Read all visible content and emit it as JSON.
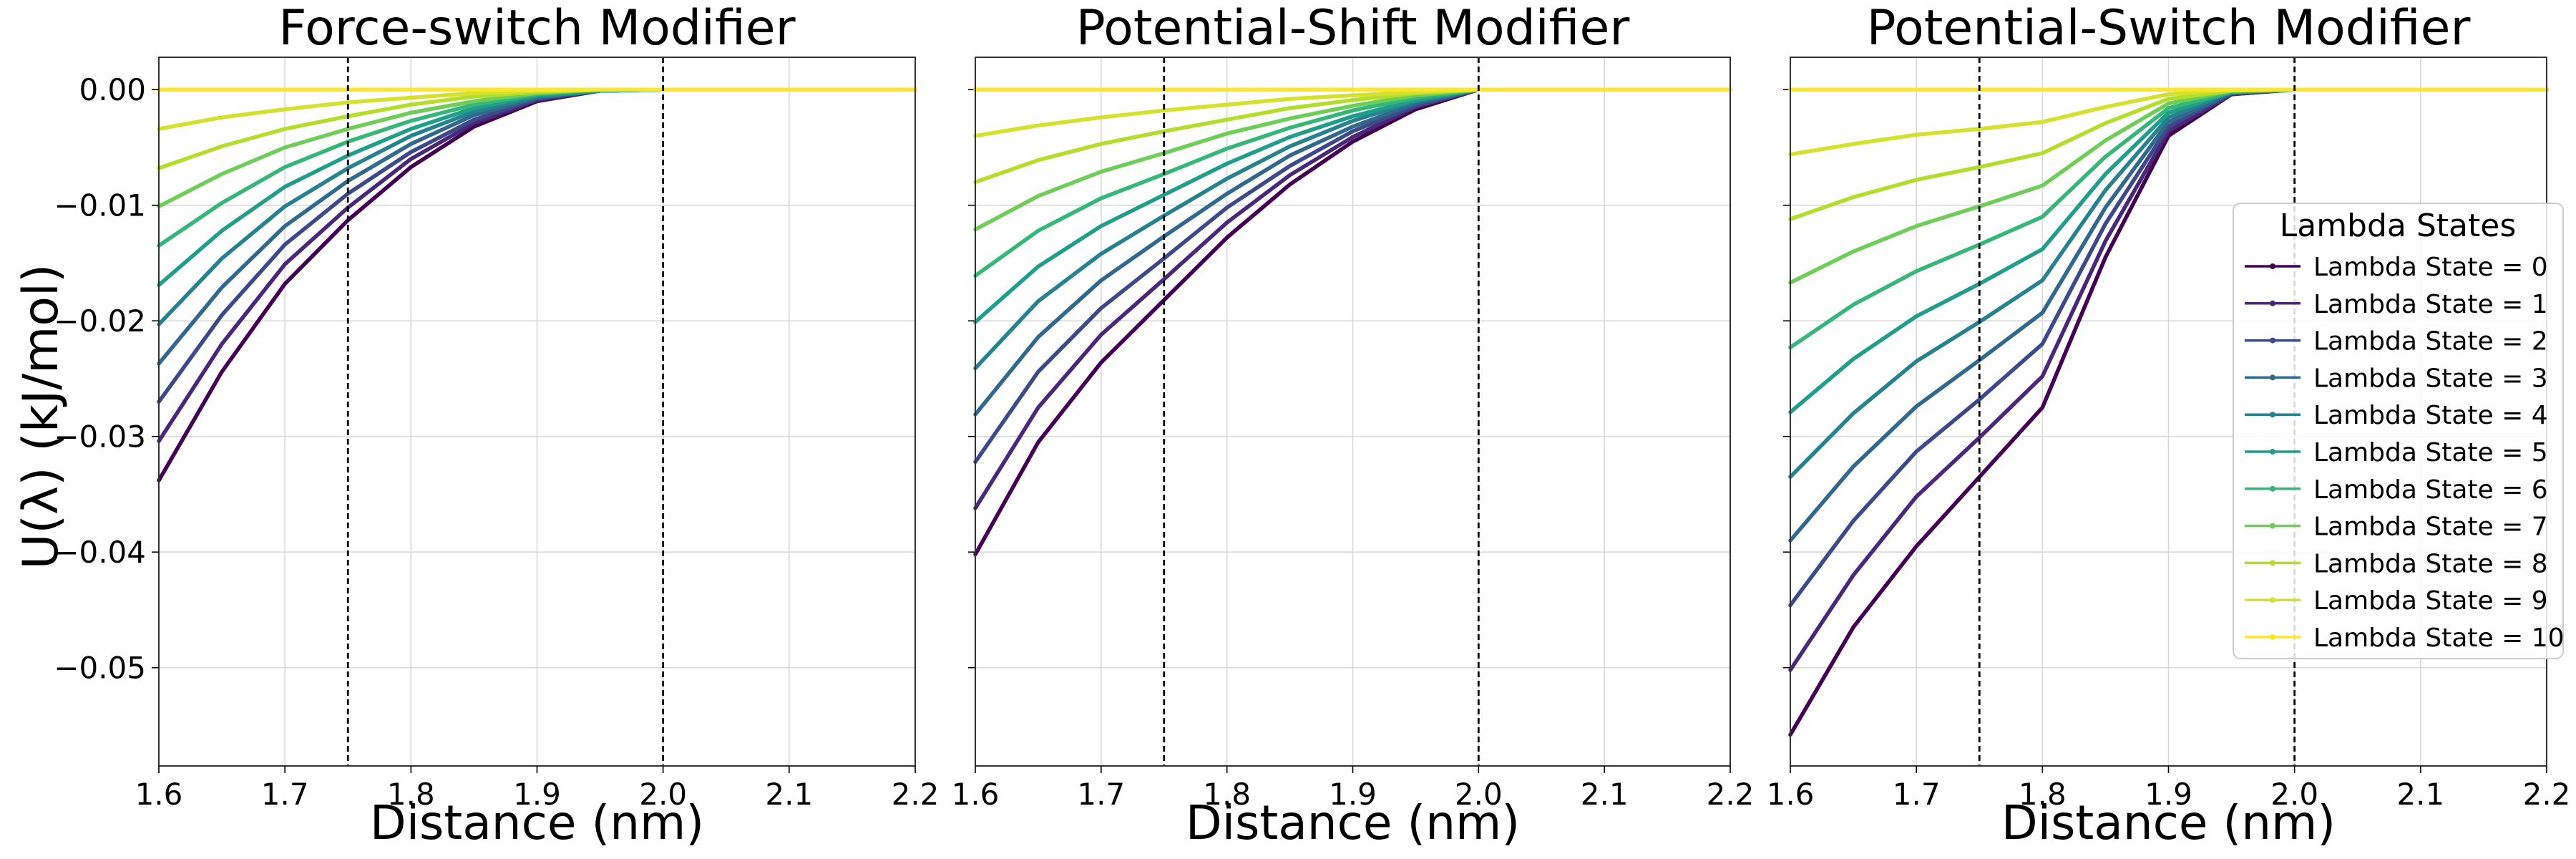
{
  "figure": {
    "ylabel": "U(λ) (kJ/mol)",
    "legend_title": "Lambda States",
    "colors": [
      "#440154",
      "#482878",
      "#3e4989",
      "#31688e",
      "#26828e",
      "#1f9e89",
      "#35b779",
      "#6ece58",
      "#b5de2b",
      "#d4e22c",
      "#fde725"
    ]
  },
  "chart_data": [
    {
      "type": "line",
      "title": "Force-switch Modifier",
      "xlabel": "Distance (nm)",
      "ylabel": "U(λ) (kJ/mol)",
      "xlim": [
        1.6,
        2.2
      ],
      "ylim": [
        -0.0585,
        0.0028
      ],
      "xticks": [
        "1.6",
        "1.7",
        "1.8",
        "1.9",
        "2.0",
        "2.1",
        "2.2"
      ],
      "yticks": [
        "0.00",
        "−0.01",
        "−0.02",
        "−0.03",
        "−0.04",
        "−0.05"
      ],
      "vlines": [
        1.75,
        2.0
      ],
      "grid": true,
      "x": [
        1.6,
        1.65,
        1.7,
        1.75,
        1.8,
        1.85,
        1.9,
        1.95,
        2.0,
        2.2
      ],
      "series": [
        {
          "name": "Lambda State = 0",
          "values": [
            -0.0338,
            -0.0244,
            -0.0168,
            -0.0113,
            -0.0067,
            -0.0032,
            -0.001,
            -0.0001,
            0.0,
            0.0
          ]
        },
        {
          "name": "Lambda State = 1",
          "values": [
            -0.0304,
            -0.022,
            -0.0151,
            -0.0102,
            -0.006,
            -0.0029,
            -0.0009,
            -0.0001,
            0.0,
            0.0
          ]
        },
        {
          "name": "Lambda State = 2",
          "values": [
            -0.027,
            -0.0195,
            -0.0134,
            -0.009,
            -0.0054,
            -0.0026,
            -0.0008,
            -0.0001,
            0.0,
            0.0
          ]
        },
        {
          "name": "Lambda State = 3",
          "values": [
            -0.0237,
            -0.0171,
            -0.0118,
            -0.0079,
            -0.0047,
            -0.0022,
            -0.0007,
            -0.0001,
            0.0,
            0.0
          ]
        },
        {
          "name": "Lambda State = 4",
          "values": [
            -0.0203,
            -0.0146,
            -0.0101,
            -0.0068,
            -0.004,
            -0.0019,
            -0.0006,
            -0.0001,
            0.0,
            0.0
          ]
        },
        {
          "name": "Lambda State = 5",
          "values": [
            -0.0169,
            -0.0122,
            -0.0084,
            -0.0057,
            -0.0034,
            -0.0016,
            -0.0005,
            -0.0001,
            0.0,
            0.0
          ]
        },
        {
          "name": "Lambda State = 6",
          "values": [
            -0.0135,
            -0.0098,
            -0.0067,
            -0.0045,
            -0.0027,
            -0.0013,
            -0.0004,
            0.0,
            0.0,
            0.0
          ]
        },
        {
          "name": "Lambda State = 7",
          "values": [
            -0.0101,
            -0.0073,
            -0.005,
            -0.0034,
            -0.002,
            -0.001,
            -0.0003,
            0.0,
            0.0,
            0.0
          ]
        },
        {
          "name": "Lambda State = 8",
          "values": [
            -0.0068,
            -0.0049,
            -0.0034,
            -0.0023,
            -0.0013,
            -0.0006,
            -0.0002,
            0.0,
            0.0,
            0.0
          ]
        },
        {
          "name": "Lambda State = 9",
          "values": [
            -0.0034,
            -0.0024,
            -0.0017,
            -0.0011,
            -0.0007,
            -0.0003,
            -0.0001,
            0.0,
            0.0,
            0.0
          ]
        },
        {
          "name": "Lambda State = 10",
          "values": [
            0.0,
            0.0,
            0.0,
            0.0,
            0.0,
            0.0,
            0.0,
            0.0,
            0.0,
            0.0
          ]
        }
      ]
    },
    {
      "type": "line",
      "title": "Potential-Shift Modifier",
      "xlabel": "Distance (nm)",
      "xlim": [
        1.6,
        2.2
      ],
      "ylim": [
        -0.0585,
        0.0028
      ],
      "xticks": [
        "1.6",
        "1.7",
        "1.8",
        "1.9",
        "2.0",
        "2.1",
        "2.2"
      ],
      "vlines": [
        1.75,
        2.0
      ],
      "grid": true,
      "x": [
        1.6,
        1.65,
        1.7,
        1.75,
        1.8,
        1.85,
        1.9,
        1.95,
        2.0,
        2.2
      ],
      "series": [
        {
          "name": "Lambda State = 0",
          "values": [
            -0.0402,
            -0.0305,
            -0.0236,
            -0.0182,
            -0.0128,
            -0.0082,
            -0.0045,
            -0.0017,
            0.0,
            0.0
          ]
        },
        {
          "name": "Lambda State = 1",
          "values": [
            -0.0362,
            -0.0275,
            -0.0212,
            -0.0164,
            -0.0115,
            -0.0074,
            -0.0041,
            -0.0015,
            0.0,
            0.0
          ]
        },
        {
          "name": "Lambda State = 2",
          "values": [
            -0.0322,
            -0.0244,
            -0.0189,
            -0.0146,
            -0.0102,
            -0.0066,
            -0.0036,
            -0.0014,
            0.0,
            0.0
          ]
        },
        {
          "name": "Lambda State = 3",
          "values": [
            -0.0281,
            -0.0214,
            -0.0165,
            -0.0127,
            -0.009,
            -0.0057,
            -0.0032,
            -0.0012,
            0.0,
            0.0
          ]
        },
        {
          "name": "Lambda State = 4",
          "values": [
            -0.0241,
            -0.0183,
            -0.0142,
            -0.0109,
            -0.0077,
            -0.0049,
            -0.0027,
            -0.001,
            0.0,
            0.0
          ]
        },
        {
          "name": "Lambda State = 5",
          "values": [
            -0.0201,
            -0.0153,
            -0.0118,
            -0.0091,
            -0.0064,
            -0.0041,
            -0.0023,
            -0.0009,
            0.0,
            0.0
          ]
        },
        {
          "name": "Lambda State = 6",
          "values": [
            -0.0161,
            -0.0122,
            -0.0094,
            -0.0073,
            -0.0051,
            -0.0033,
            -0.0018,
            -0.0007,
            0.0,
            0.0
          ]
        },
        {
          "name": "Lambda State = 7",
          "values": [
            -0.0121,
            -0.0092,
            -0.0071,
            -0.0055,
            -0.0038,
            -0.0025,
            -0.0014,
            -0.0005,
            0.0,
            0.0
          ]
        },
        {
          "name": "Lambda State = 8",
          "values": [
            -0.008,
            -0.0061,
            -0.0047,
            -0.0036,
            -0.0026,
            -0.0016,
            -0.0009,
            -0.0003,
            0.0,
            0.0
          ]
        },
        {
          "name": "Lambda State = 9",
          "values": [
            -0.004,
            -0.0031,
            -0.0024,
            -0.0018,
            -0.0013,
            -0.0008,
            -0.0005,
            -0.0002,
            0.0,
            0.0
          ]
        },
        {
          "name": "Lambda State = 10",
          "values": [
            0.0,
            0.0,
            0.0,
            0.0,
            0.0,
            0.0,
            0.0,
            0.0,
            0.0,
            0.0
          ]
        }
      ]
    },
    {
      "type": "line",
      "title": "Potential-Switch Modifier",
      "xlabel": "Distance (nm)",
      "xlim": [
        1.6,
        2.2
      ],
      "ylim": [
        -0.0585,
        0.0028
      ],
      "xticks": [
        "1.6",
        "1.7",
        "1.8",
        "1.9",
        "2.0",
        "2.1",
        "2.2"
      ],
      "vlines": [
        1.75,
        2.0
      ],
      "grid": true,
      "legend": "right",
      "x": [
        1.6,
        1.65,
        1.7,
        1.75,
        1.8,
        1.85,
        1.9,
        1.95,
        2.0,
        2.2
      ],
      "series": [
        {
          "name": "Lambda State = 0",
          "values": [
            -0.0558,
            -0.0465,
            -0.0395,
            -0.0335,
            -0.0275,
            -0.0145,
            -0.004,
            -0.0004,
            0.0,
            0.0
          ]
        },
        {
          "name": "Lambda State = 1",
          "values": [
            -0.0502,
            -0.042,
            -0.0352,
            -0.0301,
            -0.0248,
            -0.0131,
            -0.0036,
            -0.0004,
            0.0,
            0.0
          ]
        },
        {
          "name": "Lambda State = 2",
          "values": [
            -0.0446,
            -0.0373,
            -0.0313,
            -0.0268,
            -0.022,
            -0.0116,
            -0.0032,
            -0.0003,
            0.0,
            0.0
          ]
        },
        {
          "name": "Lambda State = 3",
          "values": [
            -0.039,
            -0.0326,
            -0.0274,
            -0.0234,
            -0.0193,
            -0.0102,
            -0.0028,
            -0.0003,
            0.0,
            0.0
          ]
        },
        {
          "name": "Lambda State = 4",
          "values": [
            -0.0335,
            -0.028,
            -0.0235,
            -0.0201,
            -0.0165,
            -0.0087,
            -0.0024,
            -0.0002,
            0.0,
            0.0
          ]
        },
        {
          "name": "Lambda State = 5",
          "values": [
            -0.0279,
            -0.0233,
            -0.0196,
            -0.0168,
            -0.0138,
            -0.0073,
            -0.002,
            -0.0002,
            0.0,
            0.0
          ]
        },
        {
          "name": "Lambda State = 6",
          "values": [
            -0.0223,
            -0.0186,
            -0.0157,
            -0.0134,
            -0.011,
            -0.0058,
            -0.0016,
            -0.0002,
            0.0,
            0.0
          ]
        },
        {
          "name": "Lambda State = 7",
          "values": [
            -0.0167,
            -0.014,
            -0.0118,
            -0.0101,
            -0.0083,
            -0.0044,
            -0.0012,
            -0.0001,
            0.0,
            0.0
          ]
        },
        {
          "name": "Lambda State = 8",
          "values": [
            -0.0112,
            -0.0093,
            -0.0078,
            -0.0067,
            -0.0055,
            -0.0029,
            -0.0008,
            -0.0001,
            0.0,
            0.0
          ]
        },
        {
          "name": "Lambda State = 9",
          "values": [
            -0.0056,
            -0.0047,
            -0.0039,
            -0.0034,
            -0.0028,
            -0.0015,
            -0.0004,
            0.0,
            0.0,
            0.0
          ]
        },
        {
          "name": "Lambda State = 10",
          "values": [
            0.0,
            0.0,
            0.0,
            0.0,
            0.0,
            0.0,
            0.0,
            0.0,
            0.0,
            0.0
          ]
        }
      ]
    }
  ]
}
